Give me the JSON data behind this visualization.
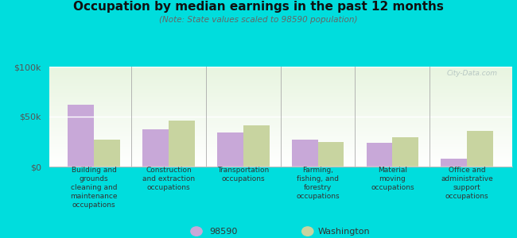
{
  "title": "Occupation by median earnings in the past 12 months",
  "subtitle": "(Note: State values scaled to 98590 population)",
  "categories": [
    "Building and\ngrounds\ncleaning and\nmaintenance\noccupations",
    "Construction\nand extraction\noccupations",
    "Transportation\noccupations",
    "Farming,\nfishing, and\nforestry\noccupations",
    "Material\nmoving\noccupations",
    "Office and\nadministrative\nsupport\noccupations"
  ],
  "values_98590": [
    62000,
    37000,
    34000,
    27000,
    24000,
    8000
  ],
  "values_washington": [
    27000,
    46000,
    41000,
    25000,
    29000,
    36000
  ],
  "color_98590": "#c8a8d8",
  "color_washington": "#c8d4a0",
  "ylim": [
    0,
    100000
  ],
  "ytick_labels": [
    "$0",
    "$50k",
    "$100k"
  ],
  "ytick_vals": [
    0,
    50000,
    100000
  ],
  "outer_background": "#00dddd",
  "chart_bg_top": "#e8f5e0",
  "chart_bg_bottom": "#f8fef4",
  "legend_98590": "98590",
  "legend_washington": "Washington",
  "watermark": "City-Data.com"
}
